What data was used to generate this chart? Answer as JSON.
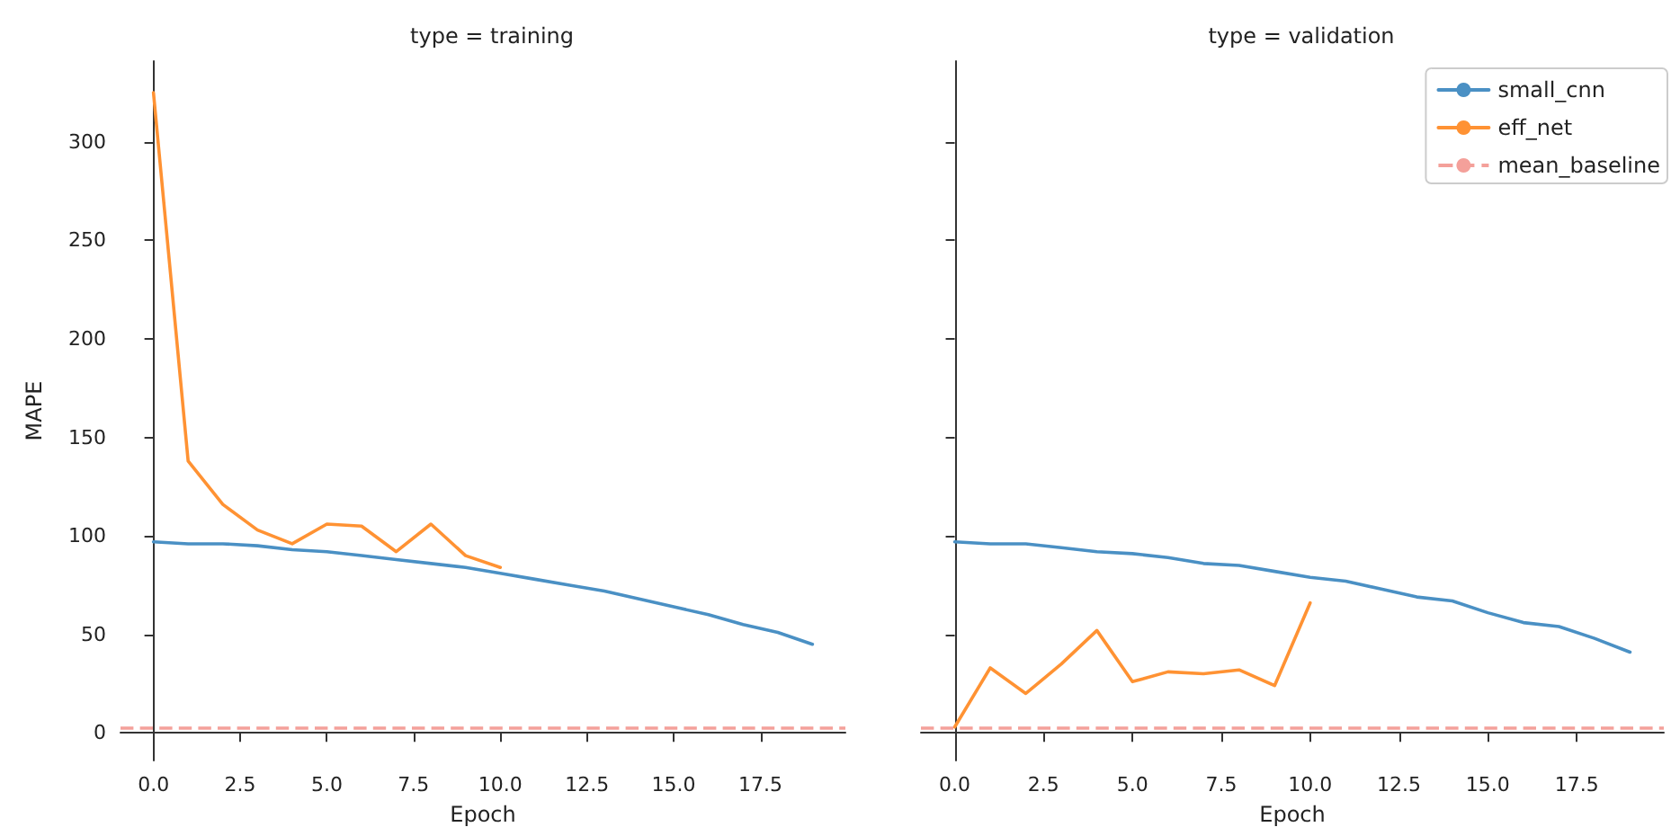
{
  "chart_data": [
    {
      "type": "line",
      "title": "type = training",
      "xlabel": "Epoch",
      "ylabel": "MAPE",
      "xlim": [
        -0.95,
        19.95
      ],
      "ylim": [
        -14,
        341
      ],
      "xticks": [
        {
          "value": 0,
          "label": "0.0"
        },
        {
          "value": 2.5,
          "label": "2.5"
        },
        {
          "value": 5,
          "label": "5.0"
        },
        {
          "value": 7.5,
          "label": "7.5"
        },
        {
          "value": 10,
          "label": "10.0"
        },
        {
          "value": 12.5,
          "label": "12.5"
        },
        {
          "value": 15,
          "label": "15.0"
        },
        {
          "value": 17.5,
          "label": "17.5"
        }
      ],
      "yticks": [
        0,
        50,
        100,
        150,
        200,
        250,
        300
      ],
      "series": [
        {
          "color": "#4a90c4",
          "x": [
            0,
            1,
            2,
            3,
            4,
            5,
            6,
            7,
            8,
            9,
            10,
            11,
            12,
            13,
            14,
            15,
            16,
            17,
            18,
            19
          ],
          "values": [
            97,
            96,
            96,
            95,
            93,
            92,
            90,
            88,
            86,
            84,
            81,
            78,
            75,
            72,
            68,
            64,
            60,
            55,
            51,
            45
          ]
        },
        {
          "color": "#ff9233",
          "x": [
            0,
            1,
            2,
            3,
            4,
            5,
            6,
            7,
            8,
            9,
            10
          ],
          "values": [
            325,
            138,
            116,
            103,
            96,
            106,
            105,
            92,
            106,
            90,
            84
          ]
        }
      ],
      "ref_lines": [
        {
          "axis": "y",
          "value": 3,
          "color": "#f4a09a",
          "line_style": "dashed"
        }
      ]
    },
    {
      "type": "line",
      "title": "type = validation",
      "xlabel": "Epoch",
      "xlim": [
        -0.95,
        19.95
      ],
      "ylim": [
        -14,
        341
      ],
      "tick_labels": "x",
      "legend": "top right",
      "xticks": [
        {
          "value": 0,
          "label": "0.0"
        },
        {
          "value": 2.5,
          "label": "2.5"
        },
        {
          "value": 5,
          "label": "5.0"
        },
        {
          "value": 7.5,
          "label": "7.5"
        },
        {
          "value": 10,
          "label": "10.0"
        },
        {
          "value": 12.5,
          "label": "12.5"
        },
        {
          "value": 15,
          "label": "15.0"
        },
        {
          "value": 17.5,
          "label": "17.5"
        }
      ],
      "yticks": [
        0,
        50,
        100,
        150,
        200,
        250,
        300
      ],
      "series": [
        {
          "name": "small_cnn",
          "color": "#4a90c4",
          "x": [
            0,
            1,
            2,
            3,
            4,
            5,
            6,
            7,
            8,
            9,
            10,
            11,
            12,
            13,
            14,
            15,
            16,
            17,
            18,
            19
          ],
          "values": [
            97,
            96,
            96,
            94,
            92,
            91,
            89,
            86,
            85,
            82,
            79,
            77,
            73,
            69,
            67,
            61,
            56,
            54,
            48,
            41
          ]
        },
        {
          "name": "eff_net",
          "color": "#ff9233",
          "x": [
            0,
            1,
            2,
            3,
            4,
            5,
            6,
            7,
            8,
            9,
            10
          ],
          "values": [
            3,
            33,
            20,
            35,
            52,
            26,
            31,
            30,
            32,
            24,
            66
          ]
        }
      ],
      "ref_lines": [
        {
          "axis": "y",
          "value": 3,
          "label": "mean_baseline",
          "color": "#f4a09a",
          "line_style": "dashed"
        }
      ]
    }
  ]
}
